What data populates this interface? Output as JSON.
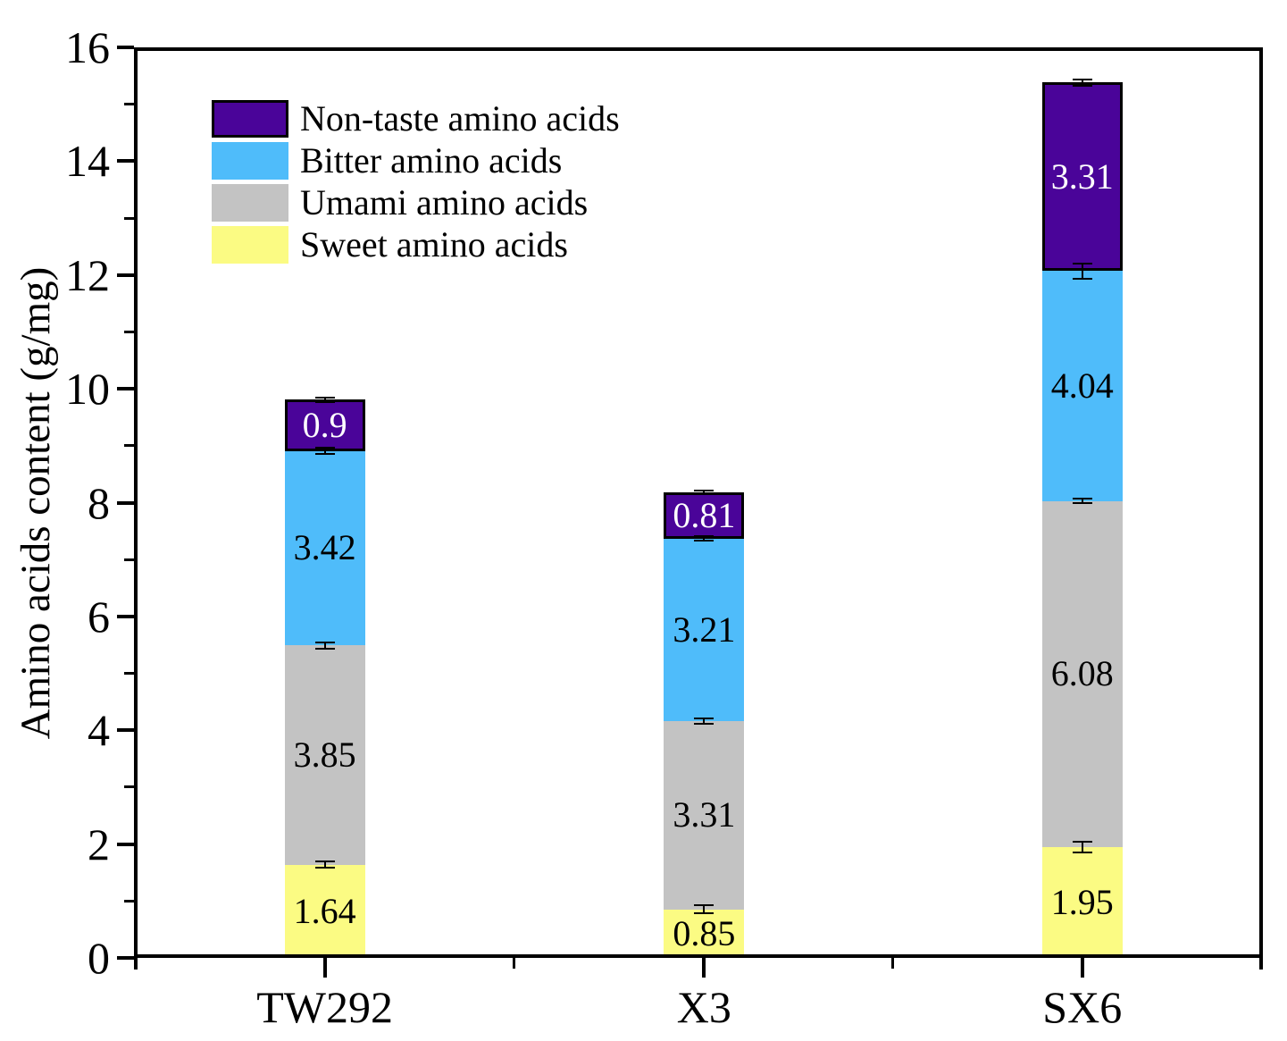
{
  "chart_data": {
    "type": "bar",
    "stacked": true,
    "title": "",
    "xlabel": "",
    "ylabel": "Amino acids content (g/mg)",
    "ylim": [
      0,
      16
    ],
    "yticks_major": [
      0,
      2,
      4,
      6,
      8,
      10,
      12,
      14,
      16
    ],
    "yticks_minor": [
      1,
      3,
      5,
      7,
      9,
      11,
      13,
      15
    ],
    "grid": false,
    "legend_position": "upper-left-inside",
    "categories": [
      "TW292",
      "X3",
      "SX6"
    ],
    "series": [
      {
        "name": "Sweet amino acids",
        "color": "#FBFB83",
        "text_color": "#000000",
        "outlined": false,
        "values": [
          1.64,
          0.85,
          1.95
        ],
        "labels": [
          "1.64",
          "0.85",
          "1.95"
        ],
        "errors": [
          0.05,
          0.07,
          0.09
        ]
      },
      {
        "name": "Umami amino acids",
        "color": "#C3C3C3",
        "text_color": "#000000",
        "outlined": false,
        "values": [
          3.85,
          3.31,
          6.08
        ],
        "labels": [
          "3.85",
          "3.31",
          "6.08"
        ],
        "errors": [
          0.06,
          0.05,
          0.04
        ]
      },
      {
        "name": "Bitter amino acids",
        "color": "#4FBCFA",
        "text_color": "#000000",
        "outlined": false,
        "values": [
          3.42,
          3.21,
          4.04
        ],
        "labels": [
          "3.42",
          "3.21",
          "4.04"
        ],
        "errors": [
          0.05,
          0.04,
          0.13
        ]
      },
      {
        "name": "Non-taste amino acids",
        "color": "#4A0499",
        "text_color": "#FFFFFF",
        "outlined": true,
        "values": [
          0.9,
          0.81,
          3.31
        ],
        "labels": [
          "0.9",
          "0.81",
          "3.31"
        ],
        "errors": [
          0.04,
          0.03,
          0.06
        ]
      }
    ],
    "legend_order": [
      "Non-taste amino acids",
      "Bitter amino acids",
      "Umami amino acids",
      "Sweet amino acids"
    ]
  }
}
